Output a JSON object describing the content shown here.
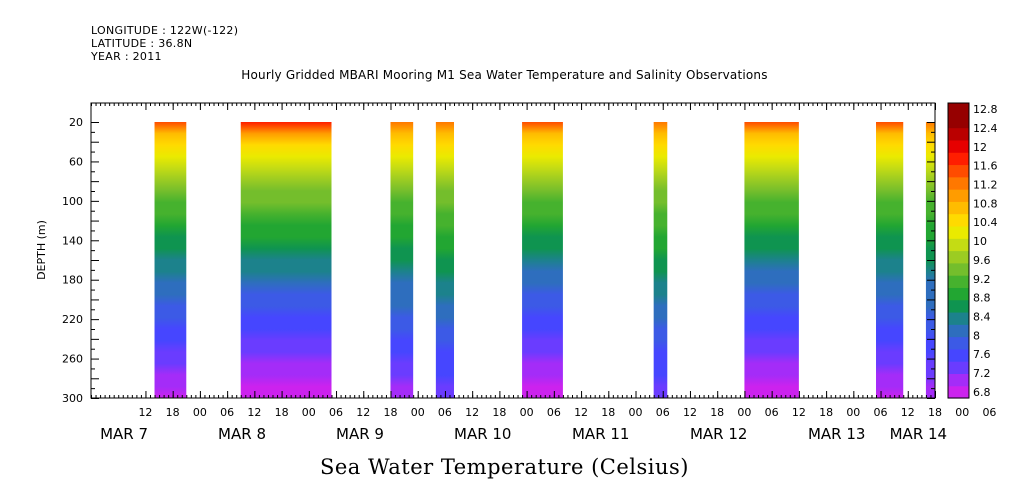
{
  "header": {
    "longitude": "LONGITUDE : 122W(-122)",
    "latitude": "LATITUDE : 36.8N",
    "year": "YEAR : 2011"
  },
  "chart_data": {
    "type": "heatmap",
    "title": "Hourly Gridded MBARI Mooring M1 Sea Water Temperature and Salinity Observations",
    "xlabel": "Sea Water Temperature (Celsius)",
    "ylabel": "DEPTH (m)",
    "ylim": [
      300,
      0
    ],
    "yticks": [
      20,
      60,
      100,
      140,
      180,
      220,
      260,
      300
    ],
    "xlim_hours": [
      0,
      186
    ],
    "x_hour_ticks": [
      "12",
      "18",
      "00",
      "06",
      "12",
      "18",
      "00",
      "06",
      "12",
      "18",
      "00",
      "06",
      "12",
      "18",
      "00",
      "06",
      "12",
      "18",
      "00",
      "06",
      "12",
      "18",
      "00",
      "06",
      "12",
      "18",
      "00",
      "06",
      "12",
      "18",
      "00",
      "06"
    ],
    "x_day_labels": [
      {
        "label": "MAR  7",
        "hour": 2
      },
      {
        "label": "MAR  8",
        "hour": 28
      },
      {
        "label": "MAR  9",
        "hour": 54
      },
      {
        "label": "MAR 10",
        "hour": 80
      },
      {
        "label": "MAR 11",
        "hour": 106
      },
      {
        "label": "MAR 12",
        "hour": 132
      },
      {
        "label": "MAR 13",
        "hour": 158
      },
      {
        "label": "MAR 14",
        "hour": 176
      }
    ],
    "data_segments": [
      {
        "start_hour": 14,
        "end_hour": 21,
        "surface_temp": 11.6,
        "bottom_temp": 7.0
      },
      {
        "start_hour": 33,
        "end_hour": 53,
        "surface_temp": 11.8,
        "bottom_temp": 6.9
      },
      {
        "start_hour": 66,
        "end_hour": 71,
        "surface_temp": 11.4,
        "bottom_temp": 7.2
      },
      {
        "start_hour": 76,
        "end_hour": 80,
        "surface_temp": 11.4,
        "bottom_temp": 7.4
      },
      {
        "start_hour": 95,
        "end_hour": 104,
        "surface_temp": 11.6,
        "bottom_temp": 6.9
      },
      {
        "start_hour": 124,
        "end_hour": 127,
        "surface_temp": 11.4,
        "bottom_temp": 7.4
      },
      {
        "start_hour": 144,
        "end_hour": 156,
        "surface_temp": 11.6,
        "bottom_temp": 6.9
      },
      {
        "start_hour": 173,
        "end_hour": 179,
        "surface_temp": 11.6,
        "bottom_temp": 7.0
      },
      {
        "start_hour": 184,
        "end_hour": 186,
        "surface_temp": 11.4,
        "bottom_temp": 7.2
      }
    ],
    "colorbar": {
      "labels": [
        "12.8",
        "12.4",
        "12",
        "11.6",
        "11.2",
        "10.8",
        "10.4",
        "10",
        "9.6",
        "9.2",
        "8.8",
        "8.4",
        "8",
        "7.6",
        "7.2",
        "6.8"
      ],
      "min": 6.8,
      "max": 12.8,
      "colors": [
        "#cc22ee",
        "#a42cf8",
        "#6a3cff",
        "#4646ff",
        "#3c5ae6",
        "#2e6ebe",
        "#1c828c",
        "#0f9450",
        "#22a632",
        "#46b22e",
        "#74be2c",
        "#9ccc22",
        "#c4dc14",
        "#eaea00",
        "#ffda00",
        "#ffbc00",
        "#ff9c00",
        "#ff7800",
        "#ff4c00",
        "#ff1e00",
        "#e60000",
        "#ba0000",
        "#960000",
        "#960000"
      ]
    }
  }
}
